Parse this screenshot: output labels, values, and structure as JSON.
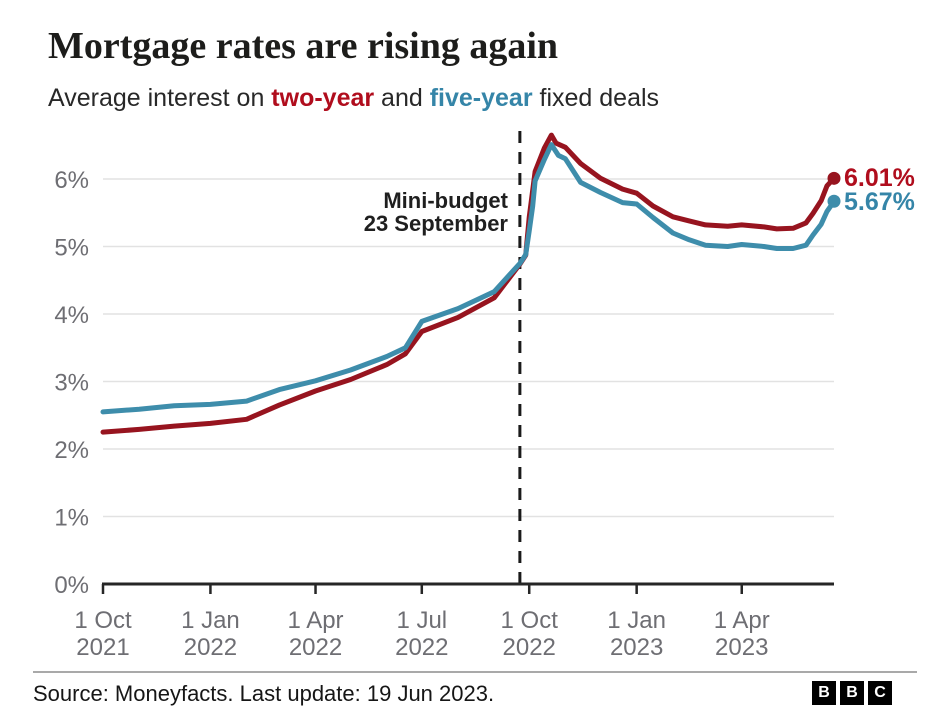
{
  "header": {
    "title": "Mortgage rates are rising again",
    "subtitle_prefix": "Average interest on ",
    "series1_label": "two-year",
    "subtitle_mid": " and ",
    "series2_label": "five-year",
    "subtitle_suffix": " fixed deals"
  },
  "colors": {
    "two_year_line": "#97141f",
    "two_year_text": "#b00d1d",
    "five_year_line": "#3e8dab",
    "five_year_text": "#3585a8",
    "grid": "#e2e2e2",
    "axis": "#262626",
    "axis_label": "#6e6e73",
    "annotation_line": "#1a1a1a"
  },
  "chart_data": {
    "type": "line",
    "title": "Mortgage rates are rising again",
    "subtitle": "Average interest on two-year and five-year fixed deals",
    "unit": "%",
    "ylim": [
      0,
      6.9
    ],
    "grid": true,
    "y_ticks": [
      {
        "value": 0,
        "label": "0%"
      },
      {
        "value": 1,
        "label": "1%"
      },
      {
        "value": 2,
        "label": "2%"
      },
      {
        "value": 3,
        "label": "3%"
      },
      {
        "value": 4,
        "label": "4%"
      },
      {
        "value": 5,
        "label": "5%"
      },
      {
        "value": 6,
        "label": "6%"
      }
    ],
    "x_range": [
      "2021-10-01",
      "2023-06-19"
    ],
    "x_ticks": [
      {
        "date": "2021-10-01",
        "line1": "1 Oct",
        "line2": "2021"
      },
      {
        "date": "2022-01-01",
        "line1": "1 Jan",
        "line2": "2022"
      },
      {
        "date": "2022-04-01",
        "line1": "1 Apr",
        "line2": "2022"
      },
      {
        "date": "2022-07-01",
        "line1": "1 Jul",
        "line2": "2022"
      },
      {
        "date": "2022-10-01",
        "line1": "1 Oct",
        "line2": "2022"
      },
      {
        "date": "2023-01-01",
        "line1": "1 Jan",
        "line2": "2023"
      },
      {
        "date": "2023-04-01",
        "line1": "1 Apr",
        "line2": "2023"
      }
    ],
    "annotation": {
      "date": "2022-09-23",
      "line1": "Mini-budget",
      "line2": "23 September"
    },
    "series": [
      {
        "name": "two-year",
        "color": "#97141f",
        "label_color": "#b00d1d",
        "end_label": "6.01%",
        "end_value": 6.01,
        "points": [
          [
            "2021-10-01",
            2.25
          ],
          [
            "2021-11-01",
            2.29
          ],
          [
            "2021-12-01",
            2.34
          ],
          [
            "2022-01-01",
            2.38
          ],
          [
            "2022-02-01",
            2.44
          ],
          [
            "2022-03-01",
            2.65
          ],
          [
            "2022-04-01",
            2.86
          ],
          [
            "2022-05-01",
            3.03
          ],
          [
            "2022-06-01",
            3.25
          ],
          [
            "2022-06-17",
            3.41
          ],
          [
            "2022-07-01",
            3.74
          ],
          [
            "2022-08-01",
            3.95
          ],
          [
            "2022-09-01",
            4.24
          ],
          [
            "2022-09-23",
            4.74
          ],
          [
            "2022-09-28",
            4.87
          ],
          [
            "2022-10-01",
            5.43
          ],
          [
            "2022-10-06",
            6.11
          ],
          [
            "2022-10-14",
            6.46
          ],
          [
            "2022-10-20",
            6.65
          ],
          [
            "2022-10-24",
            6.53
          ],
          [
            "2022-11-01",
            6.47
          ],
          [
            "2022-11-14",
            6.23
          ],
          [
            "2022-12-01",
            6.01
          ],
          [
            "2022-12-20",
            5.85
          ],
          [
            "2023-01-01",
            5.79
          ],
          [
            "2023-01-15",
            5.6
          ],
          [
            "2023-02-01",
            5.44
          ],
          [
            "2023-02-15",
            5.38
          ],
          [
            "2023-03-01",
            5.32
          ],
          [
            "2023-03-20",
            5.3
          ],
          [
            "2023-04-01",
            5.32
          ],
          [
            "2023-04-20",
            5.29
          ],
          [
            "2023-05-01",
            5.26
          ],
          [
            "2023-05-15",
            5.27
          ],
          [
            "2023-05-26",
            5.35
          ],
          [
            "2023-06-01",
            5.49
          ],
          [
            "2023-06-08",
            5.68
          ],
          [
            "2023-06-13",
            5.9
          ],
          [
            "2023-06-19",
            6.01
          ]
        ]
      },
      {
        "name": "five-year",
        "color": "#3e8dab",
        "label_color": "#3585a8",
        "end_label": "5.67%",
        "end_value": 5.67,
        "points": [
          [
            "2021-10-01",
            2.55
          ],
          [
            "2021-11-01",
            2.59
          ],
          [
            "2021-12-01",
            2.64
          ],
          [
            "2022-01-01",
            2.66
          ],
          [
            "2022-02-01",
            2.71
          ],
          [
            "2022-03-01",
            2.88
          ],
          [
            "2022-04-01",
            3.01
          ],
          [
            "2022-05-01",
            3.17
          ],
          [
            "2022-06-01",
            3.37
          ],
          [
            "2022-06-17",
            3.5
          ],
          [
            "2022-07-01",
            3.89
          ],
          [
            "2022-08-01",
            4.08
          ],
          [
            "2022-09-01",
            4.33
          ],
          [
            "2022-09-23",
            4.75
          ],
          [
            "2022-09-28",
            4.88
          ],
          [
            "2022-10-01",
            5.23
          ],
          [
            "2022-10-04",
            5.6
          ],
          [
            "2022-10-06",
            5.97
          ],
          [
            "2022-10-14",
            6.29
          ],
          [
            "2022-10-20",
            6.51
          ],
          [
            "2022-10-26",
            6.35
          ],
          [
            "2022-11-01",
            6.3
          ],
          [
            "2022-11-14",
            5.95
          ],
          [
            "2022-12-01",
            5.8
          ],
          [
            "2022-12-20",
            5.65
          ],
          [
            "2023-01-01",
            5.63
          ],
          [
            "2023-01-15",
            5.43
          ],
          [
            "2023-02-01",
            5.2
          ],
          [
            "2023-02-15",
            5.1
          ],
          [
            "2023-03-01",
            5.02
          ],
          [
            "2023-03-20",
            5.0
          ],
          [
            "2023-04-01",
            5.03
          ],
          [
            "2023-04-20",
            5.0
          ],
          [
            "2023-05-01",
            4.97
          ],
          [
            "2023-05-15",
            4.97
          ],
          [
            "2023-05-26",
            5.02
          ],
          [
            "2023-06-01",
            5.17
          ],
          [
            "2023-06-08",
            5.33
          ],
          [
            "2023-06-13",
            5.52
          ],
          [
            "2023-06-19",
            5.67
          ]
        ]
      }
    ],
    "legend_position": "in-subtitle"
  },
  "footer": {
    "source": "Source: Moneyfacts. Last update: 19 Jun 2023.",
    "logo_letters": [
      "B",
      "B",
      "C"
    ]
  }
}
